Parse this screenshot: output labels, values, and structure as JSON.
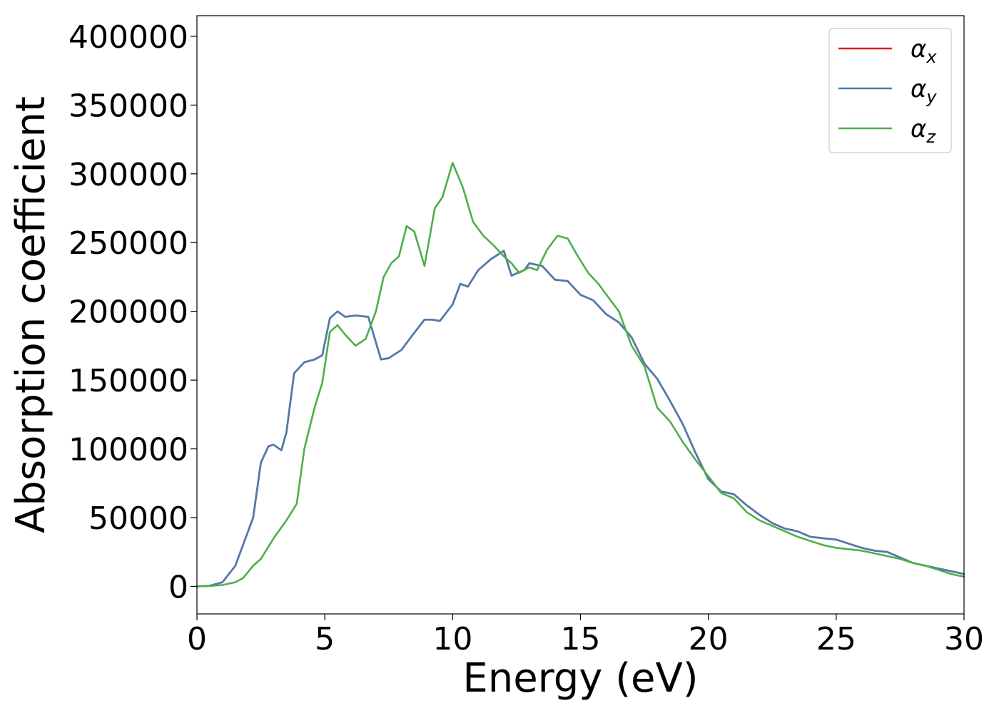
{
  "chart_data": {
    "type": "line",
    "title": "",
    "xlabel": "Energy (eV)",
    "ylabel": "Absorption coefficient",
    "xlim": [
      0,
      30
    ],
    "ylim": [
      -20000,
      415000
    ],
    "xticks": [
      0,
      5,
      10,
      15,
      20,
      25,
      30
    ],
    "xtick_labels": [
      "0",
      "5",
      "10",
      "15",
      "20",
      "25",
      "30"
    ],
    "yticks": [
      0,
      50000,
      100000,
      150000,
      200000,
      250000,
      300000,
      350000,
      400000
    ],
    "ytick_labels": [
      "0",
      "50000",
      "100000",
      "150000",
      "200000",
      "250000",
      "300000",
      "350000",
      "400000"
    ],
    "grid": false,
    "legend_position": "top-right",
    "series": [
      {
        "name": "α_x",
        "symbol": "α",
        "subscript": "x",
        "color": "#e41a1c",
        "x": [
          0,
          0.5,
          1,
          1.5,
          1.8,
          2.2,
          2.5,
          2.8,
          3,
          3.3,
          3.5,
          3.8,
          4.2,
          4.6,
          4.9,
          5.2,
          5.5,
          5.8,
          6.2,
          6.7,
          7.2,
          7.5,
          8,
          8.4,
          8.9,
          9.2,
          9.5,
          10,
          10.3,
          10.6,
          11,
          11.5,
          12,
          12.3,
          12.8,
          13,
          13.5,
          14,
          14.5,
          15,
          15.5,
          16,
          16.5,
          17,
          17.5,
          18,
          18.5,
          19,
          19.5,
          20,
          20.5,
          21,
          21.5,
          22,
          22.5,
          23,
          23.5,
          24,
          24.5,
          25,
          25.5,
          26,
          26.5,
          27,
          27.5,
          28,
          28.5,
          29,
          29.5,
          30
        ],
        "y": [
          0,
          500,
          3000,
          15000,
          30000,
          50000,
          90000,
          102000,
          103000,
          99000,
          112000,
          155000,
          163000,
          165000,
          168000,
          195000,
          200000,
          196000,
          197000,
          196000,
          165000,
          166000,
          172000,
          182000,
          194000,
          194000,
          193000,
          205000,
          220000,
          218000,
          230000,
          238000,
          244000,
          226000,
          230000,
          235000,
          233000,
          223000,
          222000,
          212000,
          208000,
          198000,
          192000,
          181000,
          162000,
          151000,
          135000,
          118000,
          97000,
          78000,
          69000,
          67000,
          59000,
          52000,
          46000,
          42000,
          40000,
          36000,
          35000,
          34000,
          31000,
          28000,
          26000,
          25000,
          21000,
          17000,
          15000,
          13000,
          11000,
          9000
        ]
      },
      {
        "name": "α_y",
        "symbol": "α",
        "subscript": "y",
        "color": "#4a7cb0",
        "x": [
          0,
          0.5,
          1,
          1.5,
          1.8,
          2.2,
          2.5,
          2.8,
          3,
          3.3,
          3.5,
          3.8,
          4.2,
          4.6,
          4.9,
          5.2,
          5.5,
          5.8,
          6.2,
          6.7,
          7.2,
          7.5,
          8,
          8.4,
          8.9,
          9.2,
          9.5,
          10,
          10.3,
          10.6,
          11,
          11.5,
          12,
          12.3,
          12.8,
          13,
          13.5,
          14,
          14.5,
          15,
          15.5,
          16,
          16.5,
          17,
          17.5,
          18,
          18.5,
          19,
          19.5,
          20,
          20.5,
          21,
          21.5,
          22,
          22.5,
          23,
          23.5,
          24,
          24.5,
          25,
          25.5,
          26,
          26.5,
          27,
          27.5,
          28,
          28.5,
          29,
          29.5,
          30
        ],
        "y": [
          0,
          500,
          3000,
          15000,
          30000,
          50000,
          90000,
          102000,
          103000,
          99000,
          112000,
          155000,
          163000,
          165000,
          168000,
          195000,
          200000,
          196000,
          197000,
          196000,
          165000,
          166000,
          172000,
          182000,
          194000,
          194000,
          193000,
          205000,
          220000,
          218000,
          230000,
          238000,
          244000,
          226000,
          230000,
          235000,
          233000,
          223000,
          222000,
          212000,
          208000,
          198000,
          192000,
          181000,
          162000,
          151000,
          135000,
          118000,
          97000,
          78000,
          69000,
          67000,
          59000,
          52000,
          46000,
          42000,
          40000,
          36000,
          35000,
          34000,
          31000,
          28000,
          26000,
          25000,
          21000,
          17000,
          15000,
          13000,
          11000,
          9000
        ]
      },
      {
        "name": "α_z",
        "symbol": "α",
        "subscript": "z",
        "color": "#4daf4a",
        "x": [
          0,
          0.5,
          1,
          1.5,
          1.8,
          2.2,
          2.5,
          3,
          3.5,
          3.9,
          4.2,
          4.6,
          4.9,
          5.2,
          5.5,
          5.8,
          6.2,
          6.6,
          7,
          7.3,
          7.6,
          7.9,
          8.2,
          8.5,
          8.9,
          9.3,
          9.6,
          10,
          10.4,
          10.8,
          11.2,
          11.6,
          12,
          12.3,
          12.6,
          13,
          13.3,
          13.7,
          14.1,
          14.5,
          14.9,
          15.3,
          15.7,
          16.1,
          16.5,
          17,
          17.5,
          18,
          18.5,
          19,
          19.5,
          20,
          20.5,
          21,
          21.5,
          22,
          22.5,
          23,
          23.5,
          24,
          24.5,
          25,
          25.5,
          26,
          26.5,
          27,
          27.5,
          28,
          28.5,
          29,
          29.5,
          30
        ],
        "y": [
          0,
          300,
          1000,
          3000,
          6000,
          15000,
          20000,
          35000,
          48000,
          60000,
          100000,
          130000,
          148000,
          185000,
          190000,
          183000,
          175000,
          180000,
          200000,
          225000,
          235000,
          240000,
          262000,
          258000,
          233000,
          275000,
          283000,
          308000,
          290000,
          265000,
          255000,
          248000,
          240000,
          235000,
          228000,
          232000,
          230000,
          245000,
          255000,
          253000,
          240000,
          228000,
          220000,
          210000,
          200000,
          175000,
          160000,
          130000,
          120000,
          105000,
          92000,
          80000,
          68000,
          64000,
          54000,
          48000,
          44000,
          40000,
          36000,
          33000,
          30000,
          28000,
          27000,
          26000,
          24000,
          22000,
          20000,
          17000,
          15000,
          12000,
          9000,
          7000
        ]
      }
    ]
  }
}
